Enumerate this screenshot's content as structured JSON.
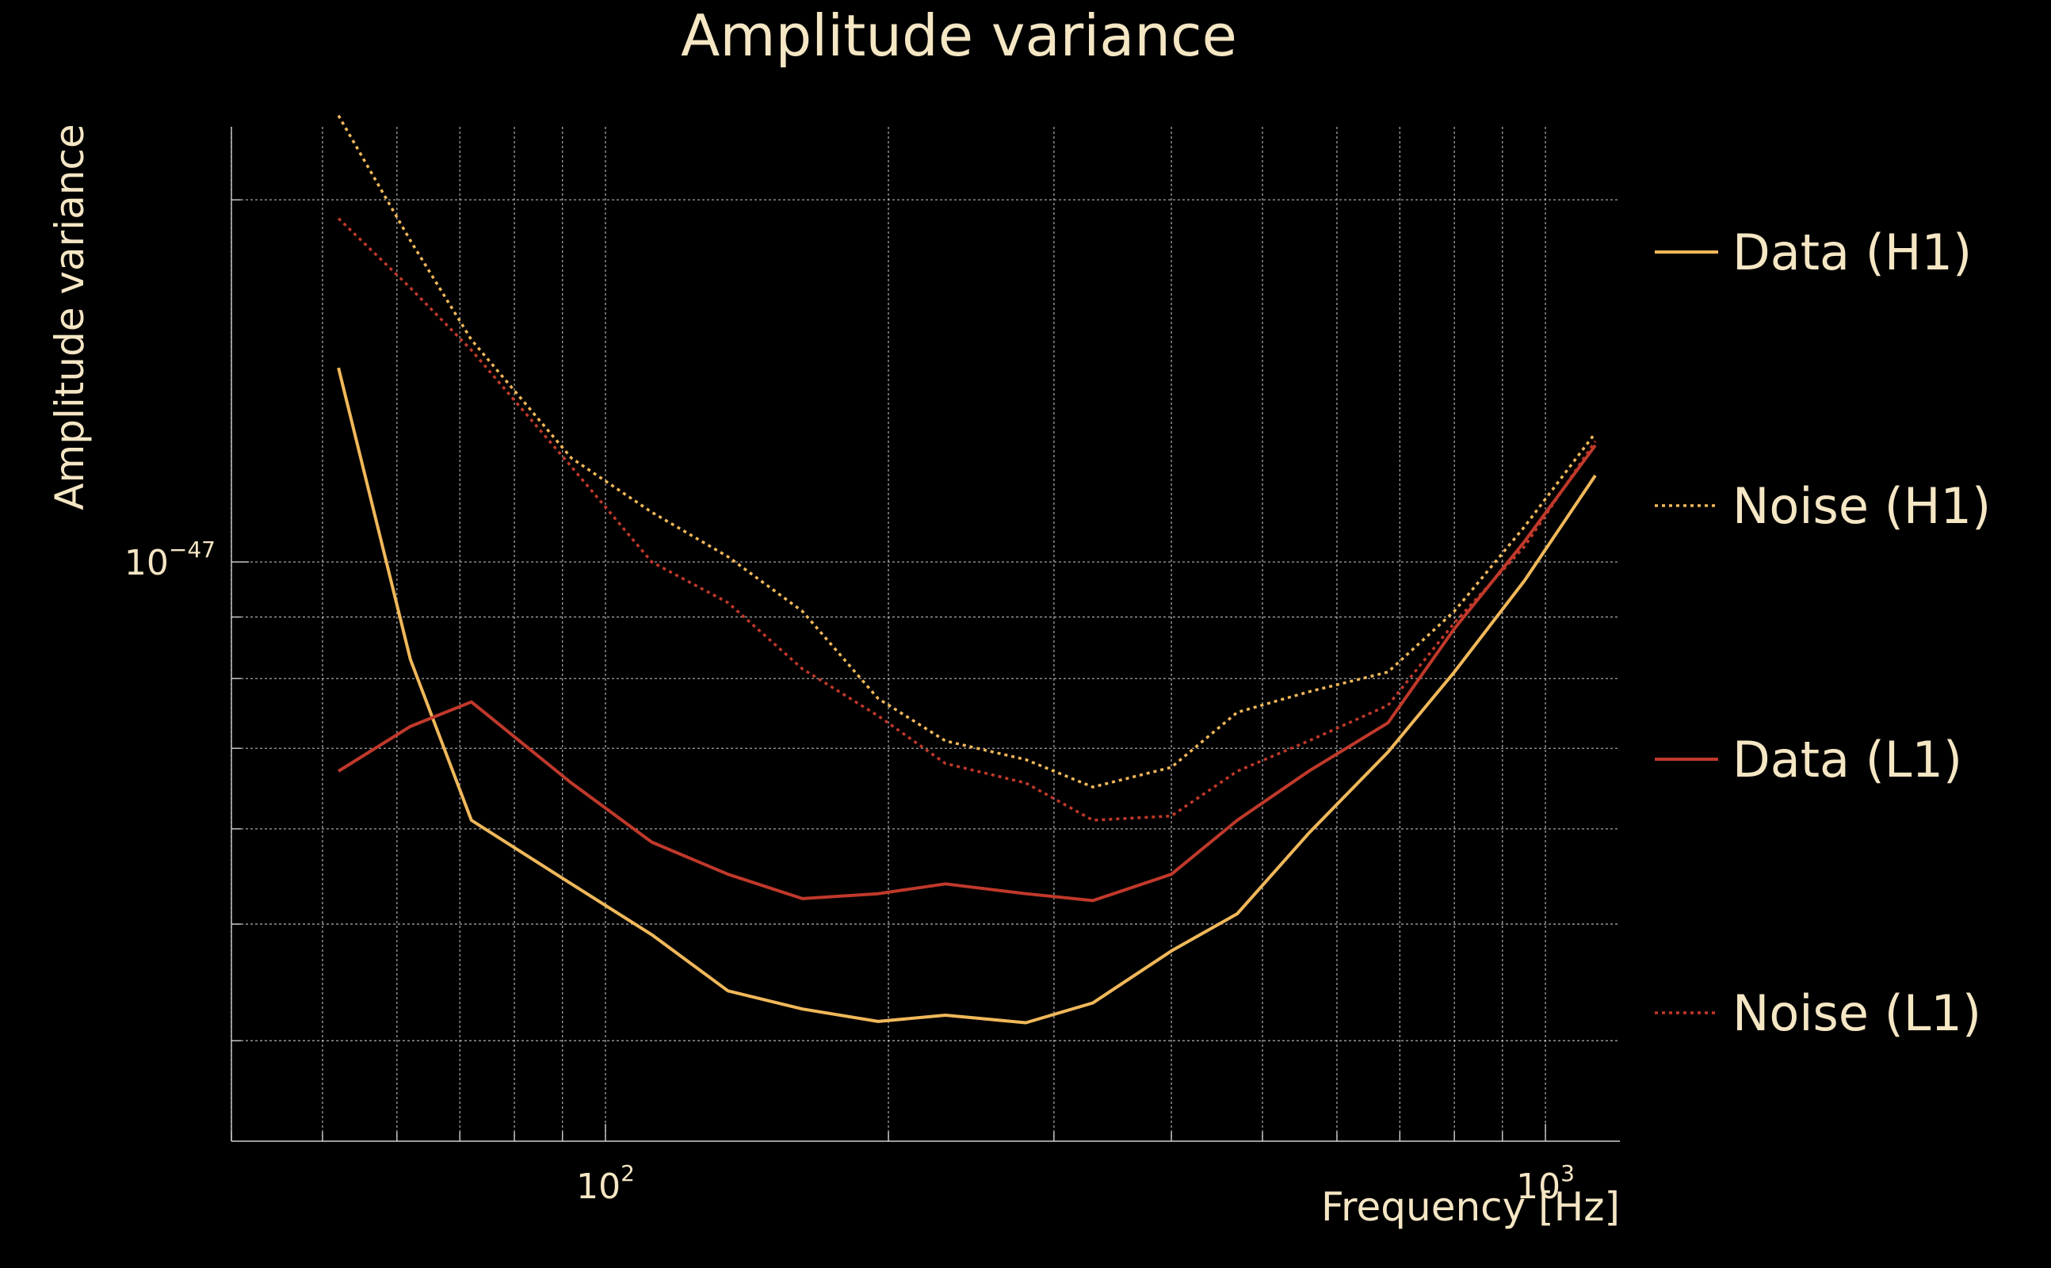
{
  "chart_data": {
    "type": "line",
    "title": "Amplitude variance",
    "xlabel": "Frequency [Hz]",
    "ylabel": "Amplitude variance",
    "xscale": "log",
    "yscale": "log",
    "xlim": [
      40,
      1200
    ],
    "ylim": [
      3.3e-48,
      2.3e-47
    ],
    "grid": true,
    "legend_position": "right",
    "x_tick_labels": [
      {
        "value": 100,
        "base": "10",
        "exp": "2"
      },
      {
        "value": 1000,
        "base": "10",
        "exp": "3"
      }
    ],
    "y_tick_labels": [
      {
        "value": 1e-47,
        "base": "10",
        "exp": "−47"
      }
    ],
    "x": [
      52,
      62,
      72,
      92,
      112,
      135,
      162,
      195,
      230,
      280,
      330,
      400,
      470,
      560,
      680,
      800,
      950,
      1130
    ],
    "series": [
      {
        "name": "Data (H1)",
        "key": "data-h1",
        "color": "#f0b85a",
        "style": "solid",
        "values": [
          1.45e-47,
          8.3e-48,
          6.1e-48,
          5.4e-48,
          4.9e-48,
          4.4e-48,
          4.25e-48,
          4.15e-48,
          4.2e-48,
          4.14e-48,
          4.3e-48,
          4.75e-48,
          5.1e-48,
          5.95e-48,
          6.95e-48,
          8.1e-48,
          9.65e-48,
          1.18e-47
        ]
      },
      {
        "name": "Noise (H1)",
        "key": "noise-h1",
        "color": "#f0b85a",
        "style": "dotted",
        "values": [
          2.35e-47,
          1.85e-47,
          1.53e-47,
          1.22e-47,
          1.1e-47,
          1.01e-47,
          9.1e-48,
          7.7e-48,
          7.1e-48,
          6.85e-48,
          6.5e-48,
          6.75e-48,
          7.5e-48,
          7.8e-48,
          8.1e-48,
          9.1e-48,
          1.07e-47,
          1.28e-47
        ]
      },
      {
        "name": "Data (L1)",
        "key": "data-l1",
        "color": "#c0392b",
        "style": "solid",
        "values": [
          6.7e-48,
          7.3e-48,
          7.65e-48,
          6.55e-48,
          5.85e-48,
          5.5e-48,
          5.25e-48,
          5.3e-48,
          5.4e-48,
          5.3e-48,
          5.23e-48,
          5.5e-48,
          6.1e-48,
          6.7e-48,
          7.35e-48,
          8.8e-48,
          1.04e-47,
          1.25e-47
        ]
      },
      {
        "name": "Noise (L1)",
        "key": "noise-l1",
        "color": "#c0392b",
        "style": "dotted",
        "values": [
          1.93e-47,
          1.69e-47,
          1.5e-47,
          1.2e-47,
          1e-47,
          9.25e-48,
          8.15e-48,
          7.45e-48,
          6.8e-48,
          6.55e-48,
          6.1e-48,
          6.15e-48,
          6.7e-48,
          7.1e-48,
          7.6e-48,
          8.9e-48,
          1.03e-47,
          1.26e-47
        ]
      }
    ]
  }
}
